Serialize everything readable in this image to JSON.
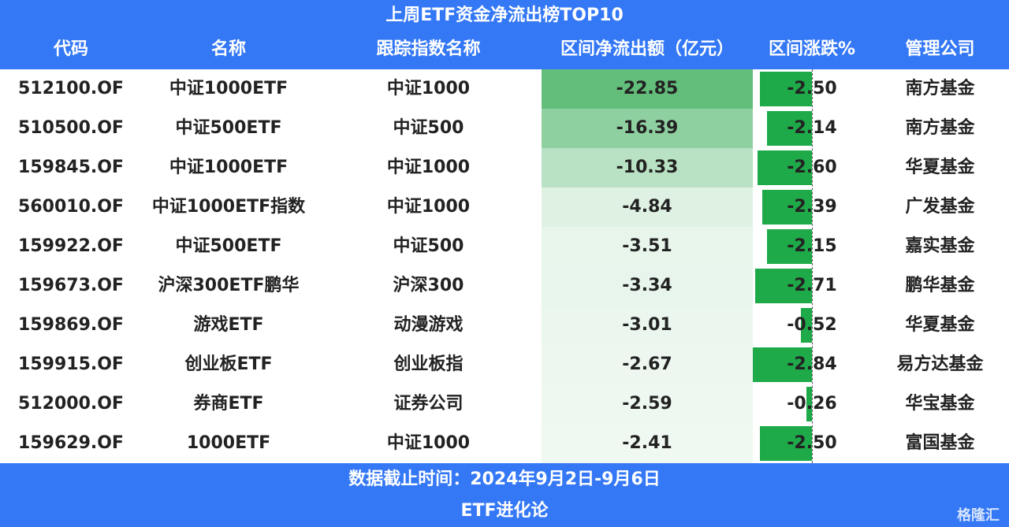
{
  "header": {
    "title": "上周ETF资金净流出榜TOP10",
    "columns": [
      "代码",
      "名称",
      "跟踪指数名称",
      "区间净流出额（亿元）",
      "区间涨跌%",
      "管理公司"
    ]
  },
  "table": {
    "rows": [
      [
        "512100.OF",
        "中证1000ETF",
        "中证1000",
        "-22.85",
        "-2.50",
        "南方基金"
      ],
      [
        "510500.OF",
        "中证500ETF",
        "中证500",
        "-16.39",
        "-2.14",
        "南方基金"
      ],
      [
        "159845.OF",
        "中证1000ETF",
        "中证1000",
        "-10.33",
        "-2.60",
        "华夏基金"
      ],
      [
        "560010.OF",
        "中证1000ETF指数",
        "中证1000",
        "-4.84",
        "-2.39",
        "广发基金"
      ],
      [
        "159922.OF",
        "中证500ETF",
        "中证500",
        "-3.51",
        "-2.15",
        "嘉实基金"
      ],
      [
        "159673.OF",
        "沪深300ETF鹏华",
        "沪深300",
        "-3.34",
        "-2.71",
        "鹏华基金"
      ],
      [
        "159869.OF",
        "游戏ETF",
        "动漫游戏",
        "-3.01",
        "-0.52",
        "华夏基金"
      ],
      [
        "159915.OF",
        "创业板ETF",
        "创业板指",
        "-2.67",
        "-2.84",
        "易方达基金"
      ],
      [
        "512000.OF",
        "券商ETF",
        "证券公司",
        "-2.59",
        "-0.26",
        "华宝基金"
      ],
      [
        "159629.OF",
        "1000ETF",
        "中证1000",
        "-2.41",
        "-2.50",
        "富国基金"
      ]
    ]
  },
  "footer": {
    "note": "数据截止时间：2024年9月2日-9月6日",
    "source": "ETF进化论",
    "watermark": "格隆汇"
  }
}
